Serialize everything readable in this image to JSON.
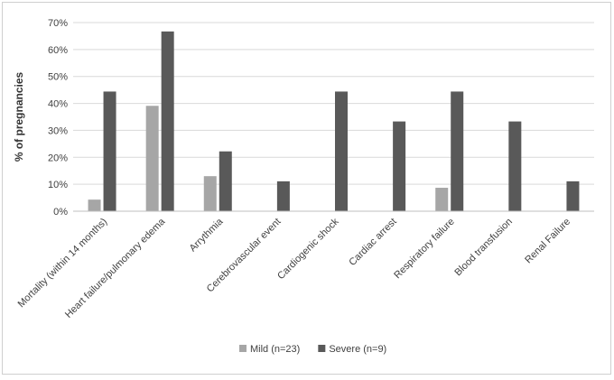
{
  "chart_data": {
    "type": "bar",
    "title": "",
    "xlabel": "",
    "ylabel": "% of pregnancies",
    "ylim": [
      0,
      70
    ],
    "yticks": [
      "0%",
      "10%",
      "20%",
      "30%",
      "40%",
      "50%",
      "60%",
      "70%"
    ],
    "grid": true,
    "legend_position": "bottom",
    "categories": [
      "Mortality (within 14 months)",
      "Heart failure/pulmonary edema",
      "Arrythmia",
      "Cerebrovascular event",
      "Cardiogenic shock",
      "Cardiac arrest",
      "Respiratory failure",
      "Blood transfusion",
      "Renal Failure"
    ],
    "series": [
      {
        "name": "Mild (n=23)",
        "color": "#a6a6a6",
        "values": [
          4.3,
          39.1,
          13.0,
          0,
          0,
          0,
          8.7,
          0,
          0
        ]
      },
      {
        "name": "Severe (n=9)",
        "color": "#595959",
        "values": [
          44.4,
          66.7,
          22.2,
          11.1,
          44.4,
          33.3,
          44.4,
          33.3,
          11.1
        ]
      }
    ]
  }
}
